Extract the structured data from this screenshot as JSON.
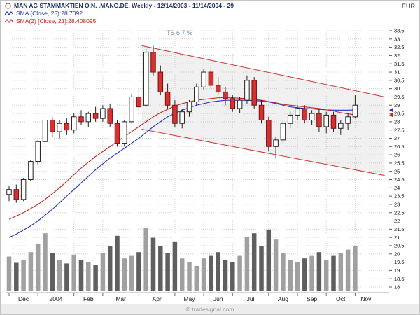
{
  "header": {
    "title": "MAN AG STAMMAKTIEN O.N. ,MANG.DE, Weekly - 12/14/2003 - 11/14/2004 - 29",
    "sma25_label": "SMA (Close, 25):28.7092",
    "sma21_label": "SMA(2) [Close, 21]:28.408095",
    "currency": "EUR"
  },
  "footer": {
    "copyright": "© tradesignal.com"
  },
  "colors": {
    "title": "#1b2e66",
    "sma25": "#2230c8",
    "sma21": "#cc2222",
    "bull_candle": "#ffffff",
    "bear_candle": "#d63131",
    "candle_border": "#222222",
    "channel_line": "#cc3333",
    "channel_fill": "rgba(150,150,150,0.14)",
    "grid": "#d4d4d4",
    "volume_up": "#a0a0a0",
    "volume_down": "#5f5f5f",
    "axis_text": "#111111"
  },
  "chart_data": {
    "type": "candlestick",
    "title": "MAN AG STAMMAKTIEN O.N. ,MANG.DE",
    "timeframe": "Weekly",
    "range": "12/14/2003 - 11/14/2004",
    "last_close": 29,
    "y_axis": {
      "min": 18,
      "max": 33.5,
      "step": 0.5,
      "unit": "EUR"
    },
    "x_labels": [
      "Dec",
      "2004",
      "Feb",
      "Mar",
      "Apr",
      "May",
      "Jun",
      "Jul",
      "Aug",
      "Sep",
      "Oct",
      "Nov"
    ],
    "month_starts": [
      0,
      4,
      9,
      13,
      18,
      23,
      27,
      31,
      36,
      40,
      44,
      48
    ],
    "candles": [
      [
        23.6,
        24.1,
        23.2,
        23.9
      ],
      [
        23.9,
        24.2,
        23.1,
        23.3
      ],
      [
        23.3,
        24.6,
        23.2,
        24.5
      ],
      [
        24.5,
        25.7,
        24.4,
        25.6
      ],
      [
        25.6,
        26.9,
        25.4,
        26.8
      ],
      [
        26.8,
        28.3,
        26.6,
        28.1
      ],
      [
        28.1,
        28.3,
        27.1,
        27.4
      ],
      [
        27.4,
        28.1,
        27.0,
        27.9
      ],
      [
        27.9,
        28.2,
        27.2,
        27.5
      ],
      [
        27.5,
        28.5,
        27.3,
        28.3
      ],
      [
        28.3,
        28.7,
        27.8,
        28.0
      ],
      [
        28.0,
        28.6,
        27.7,
        28.5
      ],
      [
        28.5,
        28.9,
        28.0,
        28.2
      ],
      [
        28.2,
        29.0,
        28.0,
        28.8
      ],
      [
        28.8,
        29.1,
        27.7,
        27.9
      ],
      [
        27.9,
        28.1,
        26.5,
        26.7
      ],
      [
        26.7,
        28.1,
        26.5,
        28.0
      ],
      [
        28.0,
        29.7,
        27.9,
        29.5
      ],
      [
        29.5,
        30.0,
        28.7,
        28.9
      ],
      [
        29.0,
        32.4,
        28.9,
        32.2
      ],
      [
        32.2,
        32.6,
        30.8,
        31.0
      ],
      [
        31.0,
        31.4,
        29.6,
        29.8
      ],
      [
        29.8,
        30.3,
        28.8,
        29.0
      ],
      [
        29.0,
        29.3,
        27.7,
        27.9
      ],
      [
        27.9,
        28.8,
        27.6,
        28.6
      ],
      [
        28.6,
        29.3,
        28.3,
        29.2
      ],
      [
        29.2,
        30.3,
        29.0,
        30.1
      ],
      [
        30.1,
        31.2,
        29.9,
        31.0
      ],
      [
        31.0,
        31.3,
        30.0,
        30.2
      ],
      [
        30.2,
        30.7,
        29.6,
        29.8
      ],
      [
        29.8,
        30.1,
        29.0,
        29.4
      ],
      [
        29.4,
        29.6,
        28.6,
        28.8
      ],
      [
        28.8,
        29.5,
        28.5,
        29.3
      ],
      [
        29.3,
        30.8,
        29.1,
        30.5
      ],
      [
        30.5,
        30.7,
        28.8,
        29.0
      ],
      [
        29.0,
        29.3,
        27.9,
        28.1
      ],
      [
        28.1,
        28.3,
        26.2,
        26.5
      ],
      [
        26.5,
        27.1,
        25.8,
        26.9
      ],
      [
        26.9,
        28.1,
        26.7,
        27.9
      ],
      [
        27.9,
        28.6,
        27.6,
        28.4
      ],
      [
        28.4,
        29.0,
        28.1,
        28.8
      ],
      [
        28.8,
        29.0,
        27.9,
        28.1
      ],
      [
        28.1,
        28.7,
        27.8,
        28.5
      ],
      [
        28.5,
        28.8,
        27.4,
        27.7
      ],
      [
        27.7,
        28.6,
        27.3,
        28.4
      ],
      [
        28.4,
        28.6,
        27.4,
        27.6
      ],
      [
        27.6,
        28.1,
        27.2,
        27.9
      ],
      [
        27.9,
        28.5,
        27.5,
        28.3
      ],
      [
        28.3,
        29.6,
        28.2,
        29.0
      ]
    ],
    "series": [
      {
        "name": "SMA (Close, 25)",
        "current": 28.7092,
        "color": "#2230c8",
        "values": [
          21.0,
          21.2,
          21.45,
          21.7,
          22.0,
          22.35,
          22.7,
          23.1,
          23.5,
          23.9,
          24.3,
          24.7,
          25.1,
          25.45,
          25.8,
          26.1,
          26.4,
          26.7,
          27.0,
          27.35,
          27.7,
          28.0,
          28.3,
          28.5,
          28.7,
          28.85,
          29.0,
          29.1,
          29.2,
          29.25,
          29.3,
          29.3,
          29.3,
          29.3,
          29.28,
          29.25,
          29.2,
          29.1,
          29.0,
          28.9,
          28.85,
          28.8,
          28.78,
          28.75,
          28.72,
          28.7,
          28.7,
          28.7,
          28.71
        ]
      },
      {
        "name": "SMA(2) [Close, 21]",
        "current": 28.408095,
        "color": "#cc2222",
        "values": [
          22.1,
          22.3,
          22.5,
          22.75,
          23.0,
          23.3,
          23.65,
          24.0,
          24.4,
          24.8,
          25.2,
          25.55,
          25.9,
          26.2,
          26.5,
          26.8,
          27.1,
          27.4,
          27.7,
          28.0,
          28.3,
          28.55,
          28.75,
          28.95,
          29.1,
          29.2,
          29.3,
          29.35,
          29.4,
          29.45,
          29.45,
          29.45,
          29.42,
          29.4,
          29.35,
          29.3,
          29.22,
          29.15,
          29.05,
          29.0,
          28.95,
          28.9,
          28.85,
          28.8,
          28.72,
          28.65,
          28.55,
          28.48,
          28.41
        ]
      }
    ],
    "volume": [
      0.55,
      0.45,
      0.5,
      0.62,
      0.75,
      0.92,
      0.6,
      0.5,
      0.44,
      0.58,
      0.5,
      0.46,
      0.42,
      0.6,
      0.72,
      0.88,
      0.52,
      0.56,
      0.62,
      1.0,
      0.85,
      0.72,
      0.6,
      0.78,
      0.52,
      0.46,
      0.4,
      0.52,
      0.56,
      0.62,
      0.5,
      0.46,
      0.56,
      0.86,
      0.92,
      0.72,
      0.98,
      0.82,
      0.6,
      0.5,
      0.46,
      0.52,
      0.56,
      0.62,
      0.5,
      0.56,
      0.6,
      0.66,
      0.72
    ],
    "channel": {
      "label": "TS 6,7 %",
      "upper": {
        "w1": 18.4,
        "v1": 32.6,
        "w2": 52.1,
        "v2": 29.5
      },
      "lower": {
        "w1": 18.4,
        "v1": 27.55,
        "w2": 52.1,
        "v2": 24.75
      }
    },
    "axis_markers": [
      {
        "value": 28.7092,
        "color": "#2230c8"
      },
      {
        "value": 28.408095,
        "color": "#cc2222"
      }
    ]
  }
}
